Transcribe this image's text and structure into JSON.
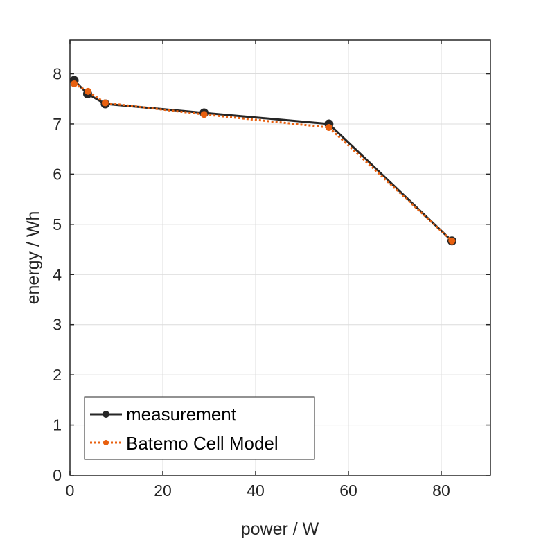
{
  "chart_data": {
    "type": "line",
    "title": "",
    "xlabel": "power / W",
    "ylabel": "energy / Wh",
    "xlim": [
      0,
      90.6
    ],
    "ylim": [
      0,
      8.67
    ],
    "xticks": [
      0,
      20,
      40,
      60,
      80
    ],
    "yticks": [
      0,
      1,
      2,
      3,
      4,
      5,
      6,
      7,
      8
    ],
    "grid": true,
    "legend_position": "bottom-left",
    "series": [
      {
        "name": "measurement",
        "color": "#262626",
        "style": "solid",
        "x": [
          0.9,
          3.8,
          7.6,
          28.9,
          55.8,
          82.3
        ],
        "y": [
          7.87,
          7.6,
          7.4,
          7.22,
          7.0,
          4.67
        ]
      },
      {
        "name": "Batemo Cell Model",
        "color": "#e8600f",
        "style": "dotted",
        "x": [
          0.9,
          3.9,
          7.6,
          28.9,
          55.8,
          82.3
        ],
        "y": [
          7.8,
          7.65,
          7.42,
          7.19,
          6.93,
          4.67
        ]
      }
    ]
  }
}
